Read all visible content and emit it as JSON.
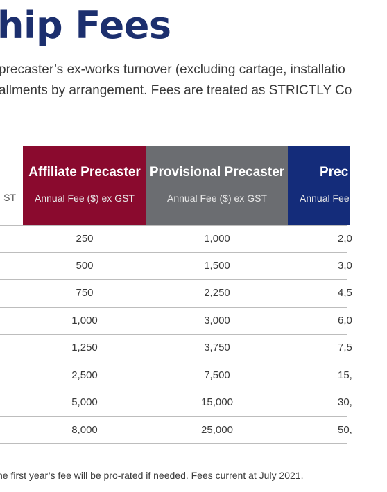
{
  "title": "hip Fees",
  "intro": {
    "line1": "precaster’s ex-works turnover (excluding cartage, installatio",
    "line2": "allments by arrangement. Fees are treated as STRICTLY Co"
  },
  "table": {
    "left_header_sub": "ST",
    "columns": [
      {
        "title": "Affiliate Precaster",
        "sub": "Annual Fee ($) ex GST",
        "color": "#8a0a2e"
      },
      {
        "title": "Provisional Precaster",
        "sub": "Annual Fee ($) ex GST",
        "color": "#6b6d71"
      },
      {
        "title": "Prec",
        "sub": "Annual Fee",
        "color": "#142c7a"
      }
    ],
    "rows": [
      {
        "affiliate": "250",
        "provisional": "1,000",
        "precaster": "2,0"
      },
      {
        "affiliate": "500",
        "provisional": "1,500",
        "precaster": "3,0"
      },
      {
        "affiliate": "750",
        "provisional": "2,250",
        "precaster": "4,5"
      },
      {
        "affiliate": "1,000",
        "provisional": "3,000",
        "precaster": "6,0"
      },
      {
        "affiliate": "1,250",
        "provisional": "3,750",
        "precaster": "7,5"
      },
      {
        "affiliate": "2,500",
        "provisional": "7,500",
        "precaster": "15,"
      },
      {
        "affiliate": "5,000",
        "provisional": "15,000",
        "precaster": "30,"
      },
      {
        "affiliate": "8,000",
        "provisional": "25,000",
        "precaster": "50,"
      }
    ]
  },
  "footnote": "he first year’s fee will be pro-rated if needed. Fees current at July 2021."
}
